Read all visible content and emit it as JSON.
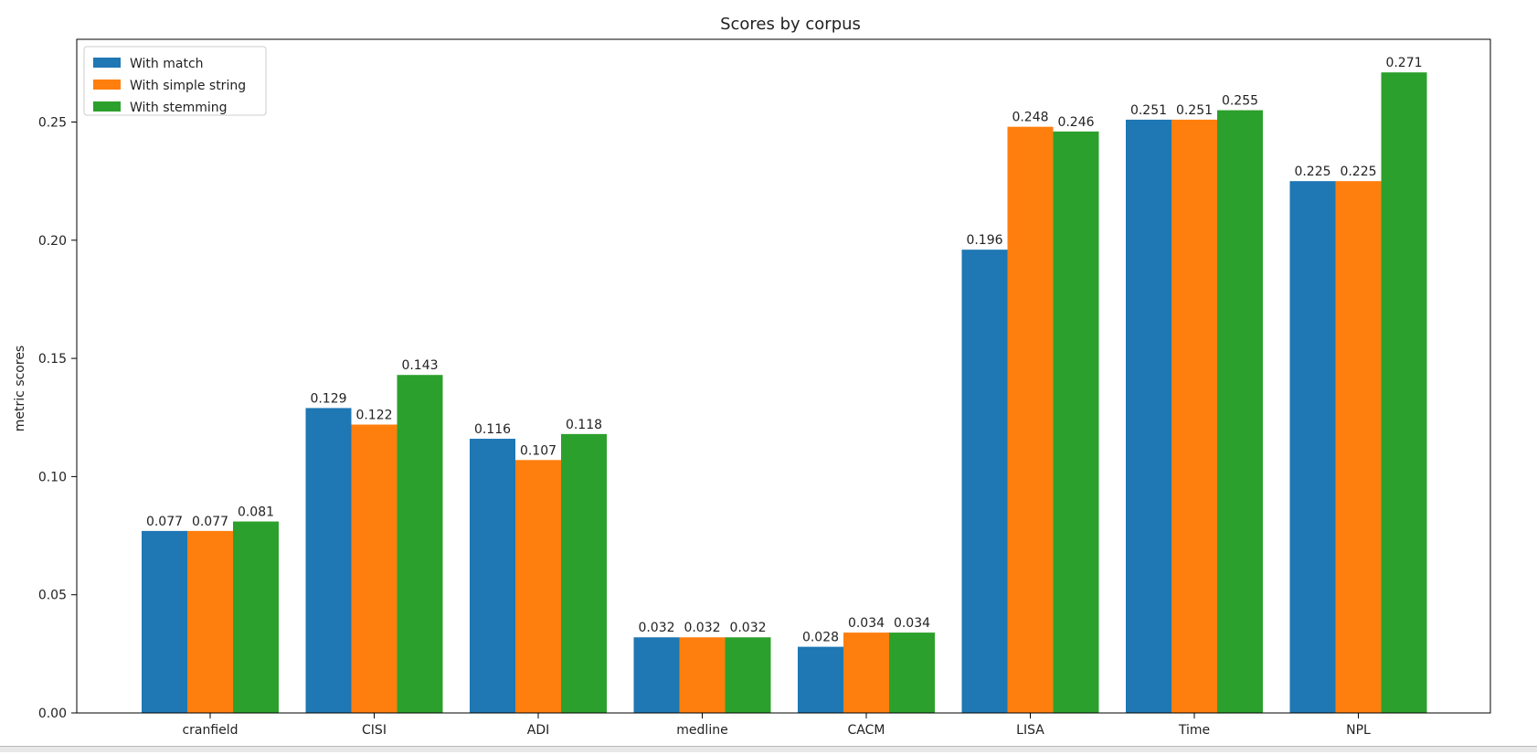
{
  "chart_data": {
    "type": "bar",
    "title": "Scores by corpus",
    "xlabel": "",
    "ylabel": "metric scores",
    "categories": [
      "cranfield",
      "CISI",
      "ADI",
      "medline",
      "CACM",
      "LISA",
      "Time",
      "NPL"
    ],
    "series": [
      {
        "name": "With match",
        "color": "#1f77b4",
        "values": [
          0.077,
          0.129,
          0.116,
          0.032,
          0.028,
          0.196,
          0.251,
          0.225
        ],
        "labels": [
          "0.077",
          "0.129",
          "0.116",
          "0.032",
          "0.028",
          "0.196",
          "0.251",
          "0.225"
        ]
      },
      {
        "name": "With simple string",
        "color": "#ff7f0e",
        "values": [
          0.077,
          0.122,
          0.107,
          0.032,
          0.034,
          0.248,
          0.251,
          0.225
        ],
        "labels": [
          "0.077",
          "0.122",
          "0.107",
          "0.032",
          "0.034",
          "0.248",
          "0.251",
          "0.225"
        ]
      },
      {
        "name": "With stemming",
        "color": "#2ca02c",
        "values": [
          0.081,
          0.143,
          0.118,
          0.032,
          0.034,
          0.246,
          0.255,
          0.271
        ],
        "labels": [
          "0.081",
          "0.143",
          "0.118",
          "0.032",
          "0.034",
          "0.246",
          "0.255",
          "0.271"
        ]
      }
    ],
    "yticks": [
      0.0,
      0.05,
      0.1,
      0.15,
      0.2,
      0.25
    ],
    "ytick_labels": [
      "0.00",
      "0.05",
      "0.10",
      "0.15",
      "0.20",
      "0.25"
    ],
    "ylim": [
      0,
      0.285
    ],
    "grid": false,
    "legend_position": "top-left"
  }
}
